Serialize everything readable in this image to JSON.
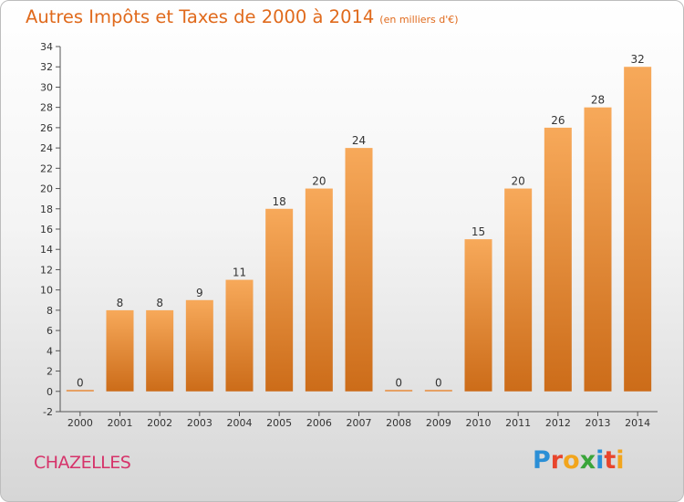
{
  "header": {
    "title": "Autres Impôts et Taxes de 2000 à 2014",
    "subtitle": "(en milliers d'€)"
  },
  "footer": {
    "commune": "CHAZELLES",
    "brand_letters": [
      "P",
      "r",
      "o",
      "x",
      "i",
      "t",
      "i"
    ],
    "brand_colors": [
      "#2b8fd6",
      "#e8452c",
      "#f2a51c",
      "#3aa53a",
      "#2b8fd6",
      "#e8452c",
      "#f2a51c"
    ]
  },
  "chart_data": {
    "type": "bar",
    "categories": [
      "2000",
      "2001",
      "2002",
      "2003",
      "2004",
      "2005",
      "2006",
      "2007",
      "2008",
      "2009",
      "2010",
      "2011",
      "2012",
      "2013",
      "2014"
    ],
    "values": [
      0,
      8,
      8,
      9,
      11,
      18,
      20,
      24,
      0,
      0,
      15,
      20,
      26,
      28,
      32
    ],
    "data_labels": [
      "0",
      "8",
      "8",
      "9",
      "11",
      "18",
      "20",
      "24",
      "0",
      "0",
      "15",
      "20",
      "26",
      "28",
      "32"
    ],
    "ylim": [
      -2,
      34
    ],
    "yticks": [
      -2,
      0,
      2,
      4,
      6,
      8,
      10,
      12,
      14,
      16,
      18,
      20,
      22,
      24,
      26,
      28,
      30,
      32,
      34
    ],
    "bar_color_top": "#f7a95a",
    "bar_color_bottom": "#cc6c19",
    "grid": false,
    "legend": "none"
  }
}
